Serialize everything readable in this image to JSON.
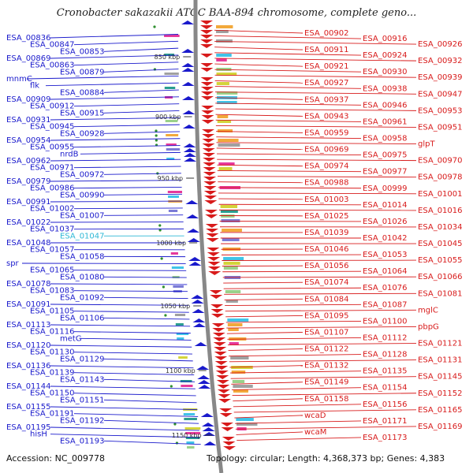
{
  "title": "Cronobacter sakazakii ATCC BAA-894 chromosome, complete geno...",
  "footer": {
    "accession": "Accession: NC_009778",
    "topology": "Topology: circular; Length: 4,368,373 bp; Genes: 4,383"
  },
  "colors": {
    "left_genes": "#1a1acc",
    "right_genes": "#d81b1b",
    "highlight": "#2fb8d6",
    "backbone": "#888888"
  },
  "scale_ticks": [
    "850 kbp",
    "900 kbp",
    "950 kbp",
    "1000 kbp",
    "1050 kbp",
    "1100 kbp",
    "1150 kbp"
  ],
  "left_labels": [
    "ESA_00836",
    "ESA_00847",
    "ESA_00853",
    "ESA_00869",
    "ESA_00863",
    "ESA_00879",
    "mnmC",
    "flk",
    "ESA_00884",
    "ESA_00909",
    "ESA_00912",
    "ESA_00915",
    "ESA_00931",
    "ESA_00945",
    "ESA_00928",
    "ESA_00954",
    "ESA_00955",
    "nrdB",
    "ESA_00962",
    "ESA_00971",
    "ESA_00972",
    "ESA_00979",
    "ESA_00986",
    "ESA_00990",
    "ESA_00991",
    "ESA_01002",
    "ESA_01007",
    "ESA_01022",
    "ESA_01037",
    "ESA_01047",
    "ESA_01048",
    "ESA_01057",
    "ESA_01058",
    "spr",
    "ESA_01065",
    "ESA_01080",
    "ESA_01078",
    "ESA_01083",
    "ESA_01092",
    "ESA_01091",
    "ESA_01105",
    "ESA_01106",
    "ESA_01113",
    "ESA_01116",
    "metG",
    "ESA_01120",
    "ESA_01130",
    "ESA_01129",
    "ESA_01136",
    "ESA_01139",
    "ESA_01143",
    "ESA_01144",
    "ESA_01150",
    "ESA_01151",
    "ESA_01155",
    "ESA_01191",
    "ESA_01192",
    "ESA_01195",
    "hisH",
    "ESA_01193"
  ],
  "right_labels": [
    "ESA_00902",
    "ESA_00916",
    "ESA_00926",
    "ESA_00911",
    "ESA_00924",
    "ESA_00932",
    "ESA_00921",
    "ESA_00930",
    "ESA_00939",
    "ESA_00927",
    "ESA_00938",
    "ESA_00947",
    "ESA_00937",
    "ESA_00946",
    "ESA_00953",
    "ESA_00943",
    "ESA_00961",
    "ESA_00951",
    "ESA_00959",
    "ESA_00958",
    "glpT",
    "ESA_00969",
    "ESA_00975",
    "ESA_00970",
    "ESA_00974",
    "ESA_00977",
    "ESA_00978",
    "ESA_00988",
    "ESA_00999",
    "ESA_01001",
    "ESA_01003",
    "ESA_01014",
    "ESA_01016",
    "ESA_01025",
    "ESA_01026",
    "ESA_01034",
    "ESA_01039",
    "ESA_01042",
    "ESA_01045",
    "ESA_01046",
    "ESA_01053",
    "ESA_01055",
    "ESA_01056",
    "ESA_01064",
    "ESA_01066",
    "ESA_01074",
    "ESA_01076",
    "ESA_01081",
    "ESA_01084",
    "ESA_01087",
    "mglC",
    "ESA_01095",
    "ESA_01100",
    "pbpG",
    "ESA_01107",
    "ESA_01112",
    "ESA_01121",
    "ESA_01122",
    "ESA_01128",
    "ESA_01131",
    "ESA_01132",
    "ESA_01135",
    "ESA_01145",
    "ESA_01149",
    "ESA_01154",
    "ESA_01152",
    "ESA_01158",
    "ESA_01156",
    "ESA_01165",
    "wcaD",
    "ESA_01171",
    "ESA_01169",
    "wcaM",
    "ESA_01173"
  ]
}
